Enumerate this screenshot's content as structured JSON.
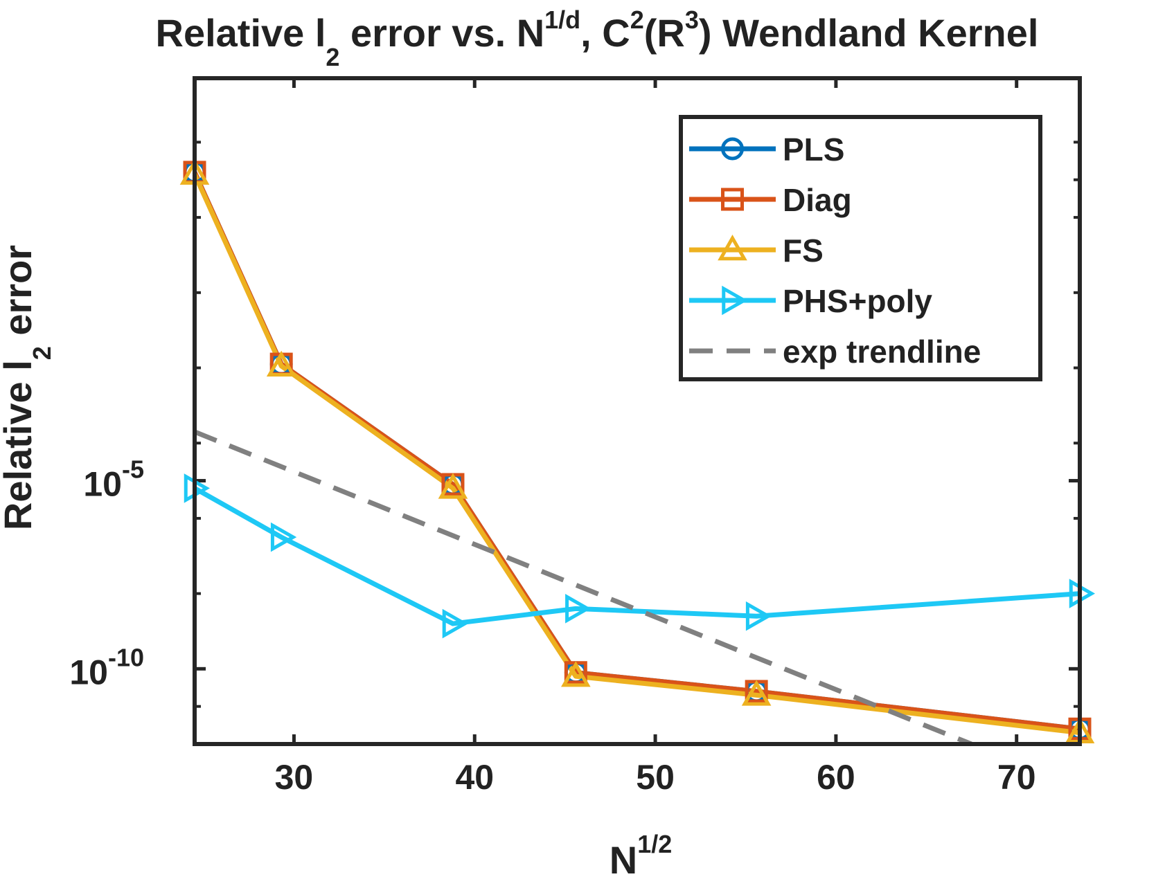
{
  "chart_data": {
    "type": "line",
    "title": {
      "part1": "Relative l",
      "sub1": "2",
      "part2": " error vs. N",
      "sup1": "1/d",
      "part3": ", C",
      "sup2": "2",
      "part4": "(R",
      "sup3": "3",
      "part5": ") Wendland Kernel"
    },
    "xlabel": {
      "base": "N",
      "sup": "1/2"
    },
    "ylabel": {
      "part1": "Relative l",
      "sub": "2",
      "part2": " error"
    },
    "xlim": [
      24.5,
      73.5
    ],
    "ylim_log10": [
      -12,
      5.7
    ],
    "x_ticks": [
      {
        "value": 30,
        "label": "30"
      },
      {
        "value": 40,
        "label": "40"
      },
      {
        "value": 50,
        "label": "50"
      },
      {
        "value": 60,
        "label": "60"
      },
      {
        "value": 70,
        "label": "70"
      }
    ],
    "y_ticks": [
      {
        "log10": -5,
        "base": "10",
        "exp": "-5"
      },
      {
        "log10": -10,
        "base": "10",
        "exp": "-10"
      }
    ],
    "x": [
      24.5,
      29.3,
      38.8,
      45.6,
      55.6,
      73.5
    ],
    "series": [
      {
        "name": "PLS",
        "marker": "circle",
        "color": "#0072BD",
        "log10_values": [
          3.2,
          -1.9,
          -5.1,
          -10.1,
          -10.6,
          -11.6
        ]
      },
      {
        "name": "Diag",
        "marker": "square",
        "color": "#D95319",
        "log10_values": [
          3.2,
          -1.9,
          -5.1,
          -10.1,
          -10.6,
          -11.6
        ]
      },
      {
        "name": "FS",
        "marker": "triangle-up",
        "color": "#EDB120",
        "log10_values": [
          3.15,
          -1.95,
          -5.2,
          -10.2,
          -10.7,
          -11.7
        ]
      },
      {
        "name": "PHS+poly",
        "marker": "triangle-right",
        "color": "#1EC8F5",
        "log10_values": [
          -5.2,
          -6.5,
          -8.8,
          -8.4,
          -8.6,
          -8.0
        ]
      },
      {
        "name": "exp trendline",
        "marker": "none",
        "dashed": true,
        "color": "#808080",
        "x": [
          24.5,
          67.5
        ],
        "log10_values": [
          -3.7,
          -12.0
        ]
      }
    ],
    "legend_position": "top-right",
    "grid": false
  }
}
